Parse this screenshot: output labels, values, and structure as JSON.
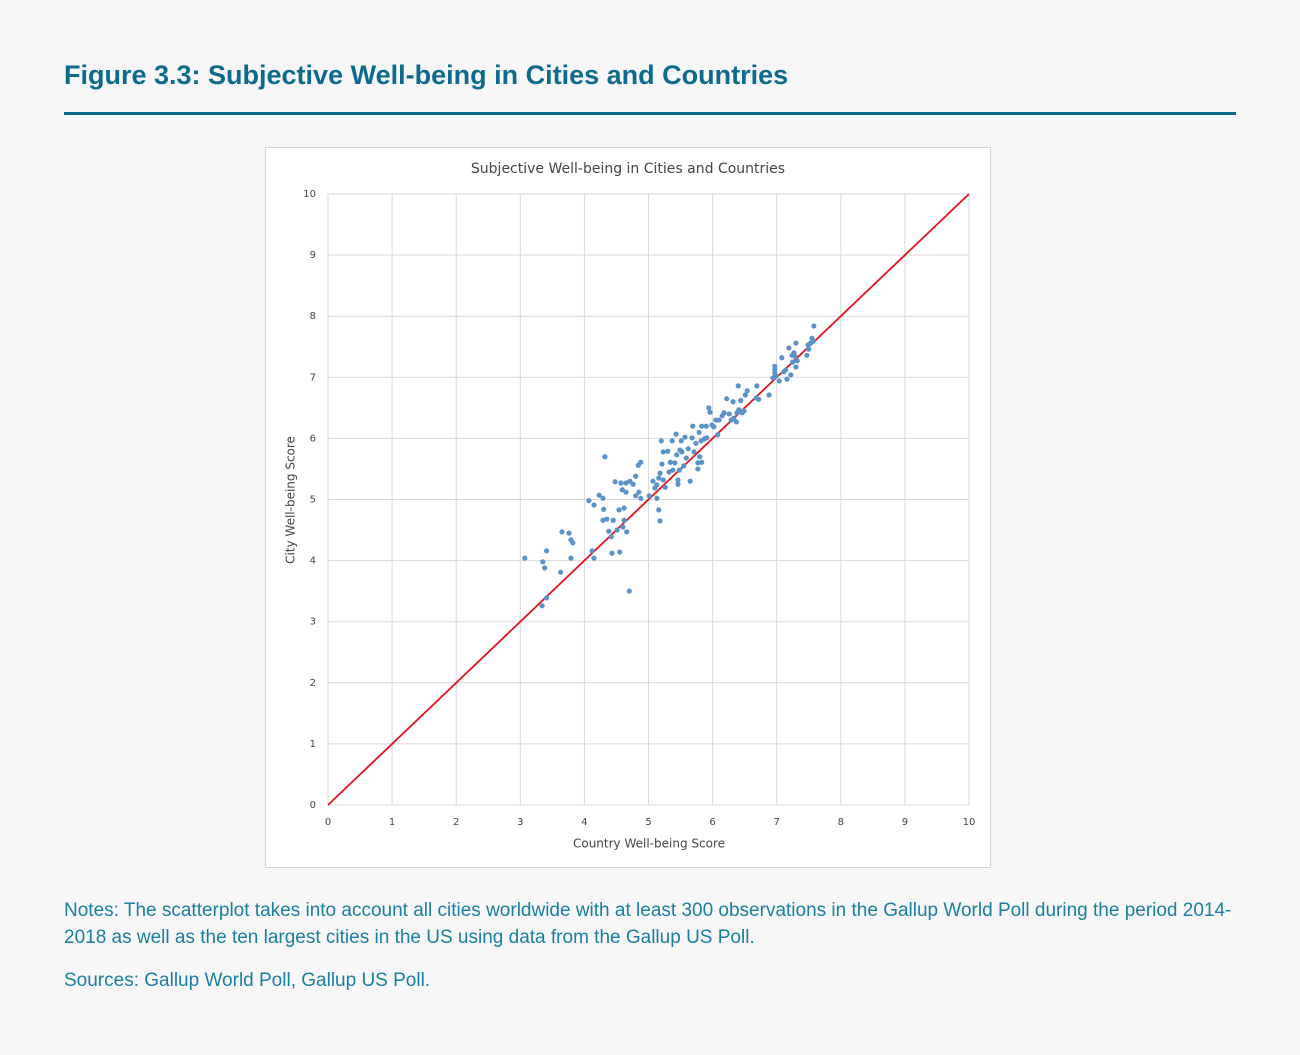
{
  "figure_title": "Figure 3.3: Subjective Well-being in Cities and Countries",
  "notes": "Notes: The scatterplot takes into account all cities worldwide with at least 300 observations in the Gallup World Poll during the period 2014-2018 as well as the ten largest cities in the US using data from the Gallup US Poll.",
  "sources": "Sources: Gallup World Poll, Gallup US Poll.",
  "chart_data": {
    "type": "scatter",
    "title": "Subjective Well-being in Cities and Countries",
    "x_label": "Country Well-being Score",
    "y_label": "City Well-being Score",
    "color": "#5b93c9",
    "grid": true,
    "xlim": [
      0,
      10
    ],
    "ylim": [
      0,
      10
    ],
    "xticks": [
      0,
      1,
      2,
      3,
      4,
      5,
      6,
      7,
      8,
      9,
      10
    ],
    "yticks": [
      0,
      1,
      2,
      3,
      4,
      5,
      6,
      7,
      8,
      9,
      10
    ],
    "reference_line": {
      "x": [
        0,
        10
      ],
      "y": [
        0,
        10
      ],
      "color": "#e0141e"
    },
    "x": [
      3.07,
      3.35,
      3.38,
      3.41,
      3.34,
      3.41,
      3.63,
      3.65,
      3.76,
      3.79,
      3.82,
      3.79,
      4.07,
      4.15,
      4.12,
      4.15,
      4.23,
      4.29,
      4.3,
      4.32,
      4.29,
      4.35,
      4.38,
      4.42,
      4.43,
      4.45,
      4.48,
      4.51,
      4.54,
      4.55,
      4.57,
      4.59,
      4.6,
      4.62,
      4.62,
      4.65,
      4.65,
      4.66,
      4.7,
      4.71,
      4.76,
      4.8,
      4.8,
      4.85,
      4.84,
      4.88,
      4.88,
      5.01,
      5.07,
      5.1,
      5.13,
      5.13,
      5.16,
      5.16,
      5.18,
      5.18,
      5.2,
      5.21,
      5.23,
      5.23,
      5.26,
      5.3,
      5.32,
      5.34,
      5.37,
      5.38,
      5.41,
      5.43,
      5.44,
      5.46,
      5.46,
      5.48,
      5.49,
      5.51,
      5.52,
      5.55,
      5.57,
      5.59,
      5.62,
      5.65,
      5.68,
      5.69,
      5.71,
      5.74,
      5.77,
      5.77,
      5.79,
      5.8,
      5.82,
      5.83,
      5.83,
      5.87,
      5.9,
      5.91,
      5.94,
      5.96,
      5.99,
      6.02,
      6.05,
      6.08,
      6.1,
      6.15,
      6.18,
      6.22,
      6.26,
      6.29,
      6.32,
      6.33,
      6.37,
      6.38,
      6.4,
      6.41,
      6.43,
      6.44,
      6.46,
      6.49,
      6.51,
      6.54,
      6.68,
      6.69,
      6.72,
      6.88,
      6.94,
      6.97,
      6.97,
      6.97,
      6.99,
      7.04,
      7.08,
      7.11,
      7.14,
      7.16,
      7.19,
      7.22,
      7.24,
      7.25,
      7.27,
      7.29,
      7.3,
      7.3,
      7.32,
      7.47,
      7.49,
      7.5,
      7.53,
      7.55,
      7.58,
      7.57
    ],
    "values": [
      4.04,
      3.98,
      3.88,
      4.16,
      3.26,
      3.39,
      3.81,
      4.47,
      4.45,
      4.34,
      4.29,
      4.04,
      4.98,
      4.91,
      4.16,
      4.04,
      5.07,
      5.02,
      4.84,
      5.7,
      4.66,
      4.68,
      4.48,
      4.39,
      4.12,
      4.66,
      5.29,
      4.5,
      4.83,
      4.14,
      5.27,
      5.16,
      4.55,
      4.66,
      4.86,
      5.27,
      5.12,
      4.47,
      3.5,
      5.3,
      5.25,
      5.38,
      5.06,
      5.12,
      5.56,
      5.61,
      5.02,
      5.06,
      5.3,
      5.19,
      5.02,
      5.24,
      5.35,
      4.83,
      4.65,
      5.43,
      5.96,
      5.58,
      5.78,
      5.32,
      5.2,
      5.79,
      5.45,
      5.61,
      5.96,
      5.48,
      5.6,
      6.07,
      5.73,
      5.32,
      5.25,
      5.48,
      5.81,
      5.96,
      5.78,
      5.55,
      6.02,
      5.68,
      5.83,
      5.3,
      6.01,
      6.2,
      5.78,
      5.92,
      5.6,
      5.5,
      6.1,
      5.7,
      5.96,
      6.2,
      5.61,
      5.99,
      6.2,
      6.01,
      6.5,
      6.43,
      6.22,
      6.19,
      6.3,
      6.06,
      6.3,
      6.37,
      6.42,
      6.65,
      6.4,
      6.3,
      6.6,
      6.33,
      6.27,
      6.42,
      6.86,
      6.47,
      6.44,
      6.62,
      6.42,
      6.45,
      6.71,
      6.78,
      6.66,
      6.86,
      6.64,
      6.71,
      6.99,
      7.18,
      7.07,
      7.13,
      7.02,
      6.94,
      7.32,
      7.09,
      7.12,
      6.97,
      7.48,
      7.04,
      7.36,
      7.25,
      7.4,
      7.34,
      7.17,
      7.56,
      7.27,
      7.36,
      7.53,
      7.46,
      7.56,
      7.64,
      7.84,
      7.59
    ]
  }
}
